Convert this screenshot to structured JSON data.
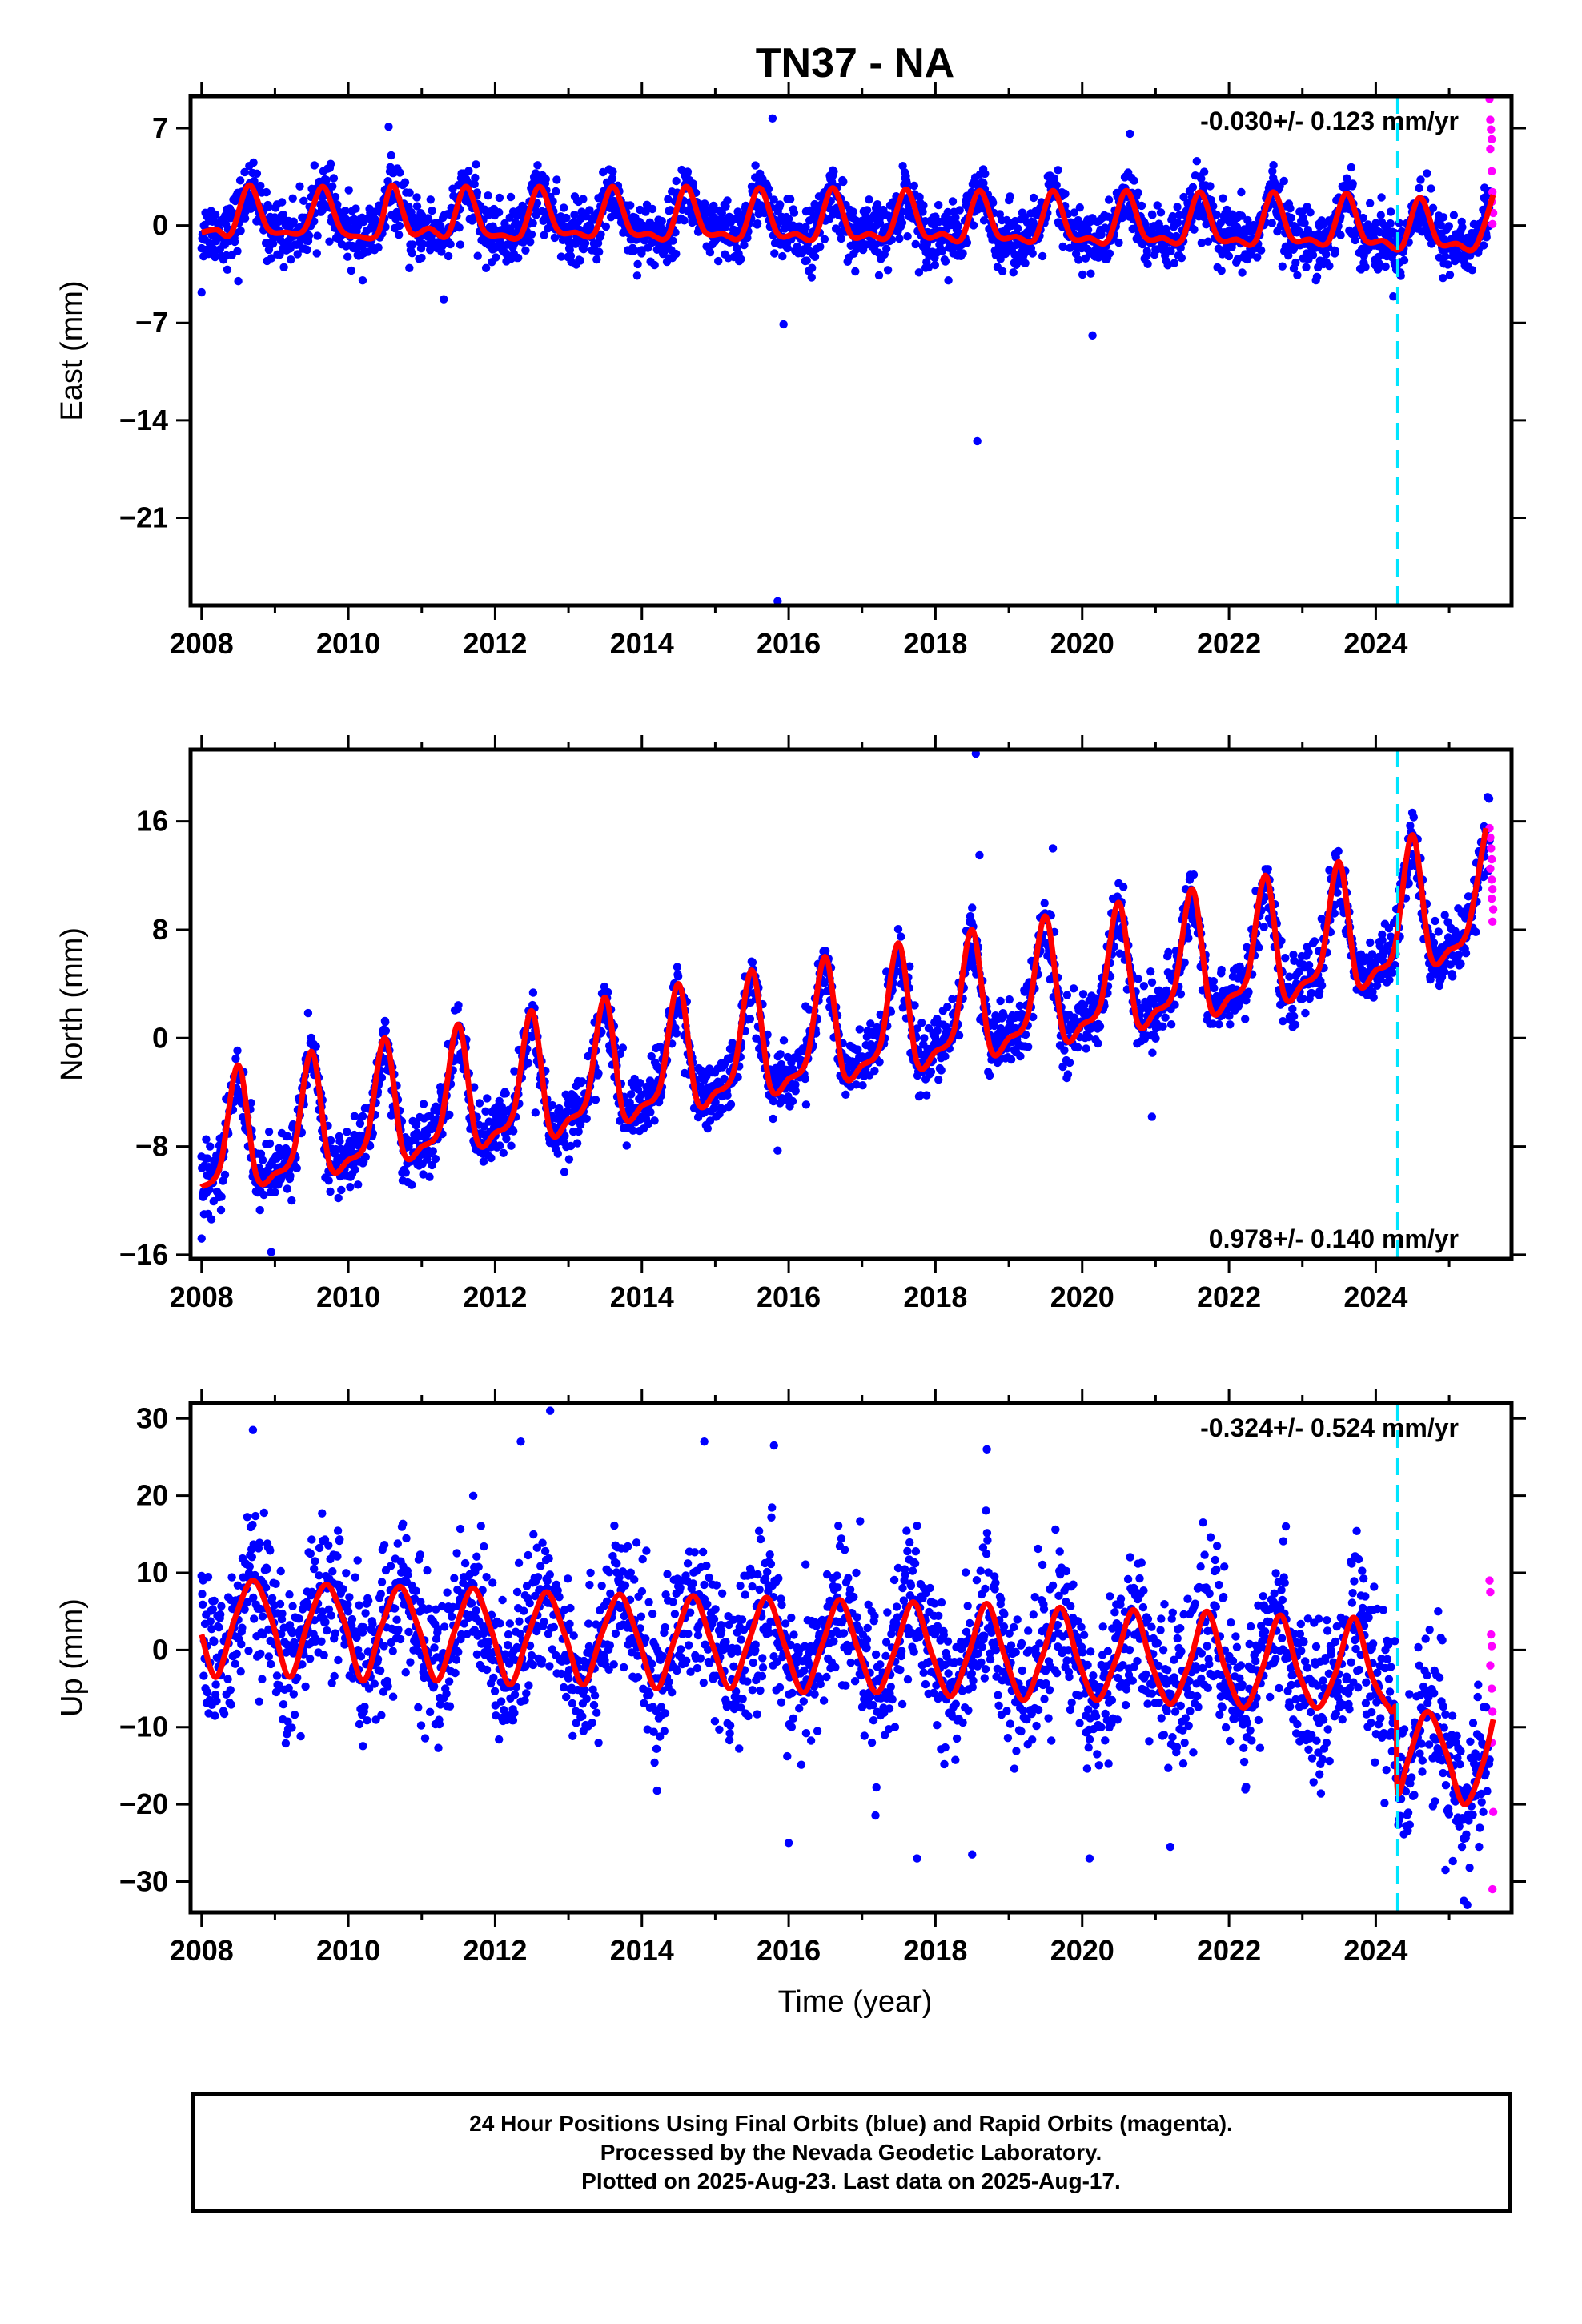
{
  "title": "TN37 - NA",
  "colors": {
    "final_orbits": "#0000ff",
    "rapid_orbits": "#ff00ff",
    "model": "#ff0000",
    "event_line": "#00e5ff"
  },
  "footer": {
    "line1": "24 Hour Positions Using Final Orbits (blue) and Rapid Orbits (magenta).",
    "line2": "Processed by the Nevada Geodetic Laboratory.",
    "line3": "Plotted on 2025-Aug-23. Last data on 2025-Aug-17."
  },
  "chart_data": [
    {
      "type": "scatter",
      "component": "East",
      "ylabel": "East (mm)",
      "xlabel": "",
      "xlim": [
        2007.85,
        2025.85
      ],
      "ylim": [
        -27.3,
        9.3
      ],
      "xticks": [
        2008,
        2010,
        2012,
        2014,
        2016,
        2018,
        2020,
        2022,
        2024
      ],
      "yticks": [
        7,
        0,
        -7,
        -14,
        -21
      ],
      "rate_label": "-0.030+/- 0.123 mm/yr",
      "rate_position": "top-right",
      "event_line_x": 2024.3,
      "trend_mm_per_yr": -0.03,
      "seasonal_amplitude_mm": 1.8,
      "offset_mm": 0.3,
      "scatter_noise_mm": 1.1,
      "model_points": [
        [
          2008.0,
          -0.5
        ],
        [
          2008.2,
          -0.3
        ],
        [
          2008.4,
          -0.6
        ],
        [
          2008.65,
          2.9
        ],
        [
          2008.9,
          -0.2
        ],
        [
          2009.15,
          -0.5
        ],
        [
          2009.4,
          -0.3
        ],
        [
          2009.65,
          2.8
        ],
        [
          2009.9,
          -0.3
        ],
        [
          2010.15,
          -0.8
        ],
        [
          2010.4,
          -0.6
        ],
        [
          2010.6,
          2.9
        ],
        [
          2010.85,
          -0.5
        ],
        [
          2011.1,
          -0.2
        ],
        [
          2011.35,
          -0.7
        ],
        [
          2011.6,
          2.8
        ],
        [
          2011.85,
          -0.4
        ],
        [
          2012.1,
          -0.7
        ],
        [
          2012.35,
          -0.7
        ],
        [
          2012.6,
          2.8
        ],
        [
          2012.85,
          -0.3
        ],
        [
          2013.1,
          -0.5
        ],
        [
          2013.35,
          -0.6
        ],
        [
          2013.6,
          2.8
        ],
        [
          2013.85,
          -0.4
        ],
        [
          2014.1,
          -0.6
        ],
        [
          2014.35,
          -0.8
        ],
        [
          2014.6,
          2.8
        ],
        [
          2014.85,
          -0.4
        ],
        [
          2015.1,
          -0.6
        ],
        [
          2015.35,
          -0.8
        ],
        [
          2015.6,
          2.7
        ],
        [
          2015.85,
          -0.6
        ],
        [
          2016.1,
          -0.6
        ],
        [
          2016.35,
          -0.9
        ],
        [
          2016.6,
          2.7
        ],
        [
          2016.85,
          -0.7
        ],
        [
          2017.1,
          -0.6
        ],
        [
          2017.35,
          -0.8
        ],
        [
          2017.6,
          2.6
        ],
        [
          2017.85,
          -0.7
        ],
        [
          2018.1,
          -0.6
        ],
        [
          2018.35,
          -1.0
        ],
        [
          2018.6,
          2.5
        ],
        [
          2018.85,
          -0.7
        ],
        [
          2019.1,
          -0.8
        ],
        [
          2019.35,
          -1.0
        ],
        [
          2019.6,
          2.5
        ],
        [
          2019.85,
          -0.8
        ],
        [
          2020.1,
          -0.9
        ],
        [
          2020.35,
          -1.1
        ],
        [
          2020.6,
          2.5
        ],
        [
          2020.85,
          -0.8
        ],
        [
          2021.1,
          -0.9
        ],
        [
          2021.35,
          -1.1
        ],
        [
          2021.6,
          2.4
        ],
        [
          2021.85,
          -0.9
        ],
        [
          2022.1,
          -1.0
        ],
        [
          2022.35,
          -1.2
        ],
        [
          2022.6,
          2.4
        ],
        [
          2022.85,
          -0.9
        ],
        [
          2023.1,
          -1.0
        ],
        [
          2023.35,
          -1.2
        ],
        [
          2023.6,
          2.3
        ],
        [
          2023.85,
          -1.0
        ],
        [
          2024.1,
          -1.1
        ],
        [
          2024.35,
          -1.6
        ],
        [
          2024.6,
          2.0
        ],
        [
          2024.85,
          -1.2
        ],
        [
          2025.1,
          -1.3
        ],
        [
          2025.35,
          -1.6
        ],
        [
          2025.6,
          2.2
        ]
      ],
      "outliers": [
        [
          2008.0,
          -4.8
        ],
        [
          2011.3,
          -5.3
        ],
        [
          2010.55,
          7.1
        ],
        [
          2015.78,
          7.7
        ],
        [
          2015.93,
          -7.1
        ],
        [
          2018.57,
          -15.5
        ],
        [
          2020.14,
          -7.9
        ],
        [
          2020.65,
          6.6
        ],
        [
          2015.85,
          -27.0
        ],
        [
          2008.5,
          -4.0
        ]
      ],
      "rapid_points": [
        [
          2025.55,
          9.1
        ],
        [
          2025.56,
          7.6
        ],
        [
          2025.57,
          6.9
        ],
        [
          2025.58,
          6.2
        ],
        [
          2025.56,
          5.5
        ],
        [
          2025.58,
          3.9
        ],
        [
          2025.59,
          2.4
        ],
        [
          2025.58,
          1.7
        ],
        [
          2025.6,
          0.9
        ],
        [
          2025.59,
          0.1
        ]
      ]
    },
    {
      "type": "scatter",
      "component": "North",
      "ylabel": "North (mm)",
      "xlabel": "",
      "xlim": [
        2007.85,
        2025.85
      ],
      "ylim": [
        -16.3,
        21.3
      ],
      "xticks": [
        2008,
        2010,
        2012,
        2014,
        2016,
        2018,
        2020,
        2022,
        2024
      ],
      "yticks": [
        16,
        8,
        0,
        -8,
        -16
      ],
      "rate_label": "0.978+/- 0.140 mm/yr",
      "rate_position": "bottom-right",
      "event_line_x": 2024.3,
      "trend_mm_per_yr": 0.978,
      "seasonal_amplitude_mm": 6.0,
      "offset_mm": -11.0,
      "scatter_noise_mm": 1.2,
      "model_points": [
        [
          2008.0,
          -11.0
        ],
        [
          2008.25,
          -9.5
        ],
        [
          2008.5,
          -2.0
        ],
        [
          2008.75,
          -10.2
        ],
        [
          2009.0,
          -10.0
        ],
        [
          2009.25,
          -8.5
        ],
        [
          2009.5,
          -1.0
        ],
        [
          2009.75,
          -9.4
        ],
        [
          2010.0,
          -9.0
        ],
        [
          2010.25,
          -7.5
        ],
        [
          2010.5,
          0.0
        ],
        [
          2010.75,
          -8.4
        ],
        [
          2011.0,
          -8.0
        ],
        [
          2011.25,
          -6.5
        ],
        [
          2011.5,
          1.0
        ],
        [
          2011.75,
          -7.5
        ],
        [
          2012.0,
          -7.0
        ],
        [
          2012.25,
          -5.5
        ],
        [
          2012.5,
          2.0
        ],
        [
          2012.75,
          -6.8
        ],
        [
          2013.0,
          -6.0
        ],
        [
          2013.25,
          -4.5
        ],
        [
          2013.5,
          3.0
        ],
        [
          2013.75,
          -5.6
        ],
        [
          2014.0,
          -5.0
        ],
        [
          2014.25,
          -3.5
        ],
        [
          2014.5,
          4.0
        ],
        [
          2014.75,
          -4.6
        ],
        [
          2015.0,
          -4.0
        ],
        [
          2015.25,
          -2.5
        ],
        [
          2015.5,
          5.0
        ],
        [
          2015.75,
          -3.6
        ],
        [
          2016.0,
          -3.0
        ],
        [
          2016.25,
          -1.5
        ],
        [
          2016.5,
          6.0
        ],
        [
          2016.75,
          -2.6
        ],
        [
          2017.0,
          -2.0
        ],
        [
          2017.25,
          -0.5
        ],
        [
          2017.5,
          7.0
        ],
        [
          2017.75,
          -1.8
        ],
        [
          2018.0,
          -1.0
        ],
        [
          2018.25,
          0.5
        ],
        [
          2018.5,
          8.0
        ],
        [
          2018.75,
          -0.8
        ],
        [
          2019.0,
          0.0
        ],
        [
          2019.25,
          1.5
        ],
        [
          2019.5,
          9.0
        ],
        [
          2019.75,
          0.2
        ],
        [
          2020.0,
          1.0
        ],
        [
          2020.25,
          2.5
        ],
        [
          2020.5,
          10.0
        ],
        [
          2020.75,
          1.2
        ],
        [
          2021.0,
          2.0
        ],
        [
          2021.25,
          3.5
        ],
        [
          2021.5,
          11.0
        ],
        [
          2021.75,
          2.2
        ],
        [
          2022.0,
          3.0
        ],
        [
          2022.25,
          4.5
        ],
        [
          2022.5,
          12.0
        ],
        [
          2022.75,
          3.2
        ],
        [
          2023.0,
          4.0
        ],
        [
          2023.25,
          5.5
        ],
        [
          2023.5,
          13.0
        ],
        [
          2023.75,
          4.2
        ],
        [
          2024.0,
          5.0
        ],
        [
          2024.25,
          6.5
        ],
        [
          2024.5,
          15.0
        ],
        [
          2024.75,
          6.0
        ],
        [
          2025.0,
          6.5
        ],
        [
          2025.25,
          8.0
        ],
        [
          2025.5,
          15.5
        ]
      ],
      "outliers": [
        [
          2008.0,
          -14.8
        ],
        [
          2008.95,
          -15.8
        ],
        [
          2018.55,
          21.0
        ],
        [
          2018.6,
          13.5
        ],
        [
          2019.6,
          14.0
        ],
        [
          2020.95,
          -5.8
        ],
        [
          2015.85,
          -8.3
        ],
        [
          2012.55,
          -5.5
        ]
      ],
      "rapid_points": [
        [
          2025.55,
          15.5
        ],
        [
          2025.56,
          14.8
        ],
        [
          2025.57,
          14.0
        ],
        [
          2025.58,
          13.2
        ],
        [
          2025.56,
          12.5
        ],
        [
          2025.58,
          11.7
        ],
        [
          2025.59,
          11.0
        ],
        [
          2025.58,
          10.3
        ],
        [
          2025.6,
          9.5
        ],
        [
          2025.59,
          8.6
        ]
      ]
    },
    {
      "type": "scatter",
      "component": "Up",
      "ylabel": "Up (mm)",
      "xlabel": "Time (year)",
      "xlim": [
        2007.85,
        2025.85
      ],
      "ylim": [
        -34.0,
        32.0
      ],
      "xticks": [
        2008,
        2010,
        2012,
        2014,
        2016,
        2018,
        2020,
        2022,
        2024
      ],
      "yticks": [
        30,
        20,
        10,
        0,
        -10,
        -20,
        -30
      ],
      "rate_label": "-0.324+/- 0.524 mm/yr",
      "rate_position": "top-right",
      "event_line_x": 2024.3,
      "trend_mm_per_yr": -0.324,
      "seasonal_amplitude_mm": 6.5,
      "offset_mm": 2.0,
      "scatter_noise_mm": 4.8,
      "post_event_offset_mm": -11.0,
      "model_points": [
        [
          2008.0,
          2.0
        ],
        [
          2008.2,
          -3.5
        ],
        [
          2008.45,
          4.0
        ],
        [
          2008.7,
          9.0
        ],
        [
          2008.95,
          4.0
        ],
        [
          2009.2,
          -3.5
        ],
        [
          2009.45,
          3.5
        ],
        [
          2009.7,
          8.5
        ],
        [
          2009.95,
          3.5
        ],
        [
          2010.2,
          -4.0
        ],
        [
          2010.45,
          3.0
        ],
        [
          2010.7,
          8.2
        ],
        [
          2010.95,
          3.0
        ],
        [
          2011.2,
          -4.0
        ],
        [
          2011.45,
          2.5
        ],
        [
          2011.7,
          8.0
        ],
        [
          2011.95,
          2.5
        ],
        [
          2012.2,
          -4.5
        ],
        [
          2012.45,
          2.0
        ],
        [
          2012.7,
          7.5
        ],
        [
          2012.95,
          2.0
        ],
        [
          2013.2,
          -4.5
        ],
        [
          2013.45,
          2.0
        ],
        [
          2013.7,
          7.2
        ],
        [
          2013.95,
          1.5
        ],
        [
          2014.2,
          -5.0
        ],
        [
          2014.45,
          1.5
        ],
        [
          2014.7,
          7.0
        ],
        [
          2014.95,
          1.0
        ],
        [
          2015.2,
          -5.0
        ],
        [
          2015.45,
          1.0
        ],
        [
          2015.7,
          6.8
        ],
        [
          2015.95,
          0.5
        ],
        [
          2016.2,
          -5.5
        ],
        [
          2016.45,
          0.5
        ],
        [
          2016.7,
          6.5
        ],
        [
          2016.95,
          0.0
        ],
        [
          2017.2,
          -5.5
        ],
        [
          2017.45,
          0.0
        ],
        [
          2017.7,
          6.2
        ],
        [
          2017.95,
          -0.5
        ],
        [
          2018.2,
          -6.0
        ],
        [
          2018.45,
          -0.5
        ],
        [
          2018.7,
          6.0
        ],
        [
          2018.95,
          -1.0
        ],
        [
          2019.2,
          -6.5
        ],
        [
          2019.45,
          -1.0
        ],
        [
          2019.7,
          5.5
        ],
        [
          2019.95,
          -1.5
        ],
        [
          2020.2,
          -6.5
        ],
        [
          2020.45,
          -1.5
        ],
        [
          2020.7,
          5.2
        ],
        [
          2020.95,
          -2.0
        ],
        [
          2021.2,
          -7.0
        ],
        [
          2021.45,
          -2.0
        ],
        [
          2021.7,
          5.0
        ],
        [
          2021.95,
          -2.5
        ],
        [
          2022.2,
          -7.5
        ],
        [
          2022.45,
          -2.5
        ],
        [
          2022.7,
          4.5
        ],
        [
          2022.95,
          -3.0
        ],
        [
          2023.2,
          -7.5
        ],
        [
          2023.45,
          -3.0
        ],
        [
          2023.7,
          4.2
        ],
        [
          2023.95,
          -3.5
        ],
        [
          2024.2,
          -7.8
        ],
        [
          2024.28,
          -8.0
        ],
        [
          2024.3,
          -18.5
        ],
        [
          2024.45,
          -14.0
        ],
        [
          2024.7,
          -8.0
        ],
        [
          2024.95,
          -13.0
        ],
        [
          2025.2,
          -20.0
        ],
        [
          2025.45,
          -15.0
        ],
        [
          2025.6,
          -9.0
        ]
      ],
      "outliers": [
        [
          2008.7,
          28.5
        ],
        [
          2012.75,
          31.0
        ],
        [
          2012.35,
          27.0
        ],
        [
          2014.85,
          27.0
        ],
        [
          2015.8,
          26.5
        ],
        [
          2016.0,
          -25.0
        ],
        [
          2017.75,
          -27.0
        ],
        [
          2018.5,
          -26.5
        ],
        [
          2018.7,
          26.0
        ],
        [
          2020.1,
          -27.0
        ],
        [
          2021.2,
          -25.5
        ],
        [
          2025.2,
          -32.5
        ],
        [
          2024.85,
          5.0
        ],
        [
          2024.95,
          -28.5
        ]
      ],
      "rapid_points": [
        [
          2025.55,
          9.0
        ],
        [
          2025.56,
          7.5
        ],
        [
          2025.57,
          2.0
        ],
        [
          2025.58,
          0.5
        ],
        [
          2025.56,
          -2.0
        ],
        [
          2025.58,
          -5.0
        ],
        [
          2025.59,
          -8.0
        ],
        [
          2025.58,
          -12.0
        ],
        [
          2025.6,
          -21.0
        ],
        [
          2025.59,
          -31.0
        ]
      ]
    }
  ]
}
